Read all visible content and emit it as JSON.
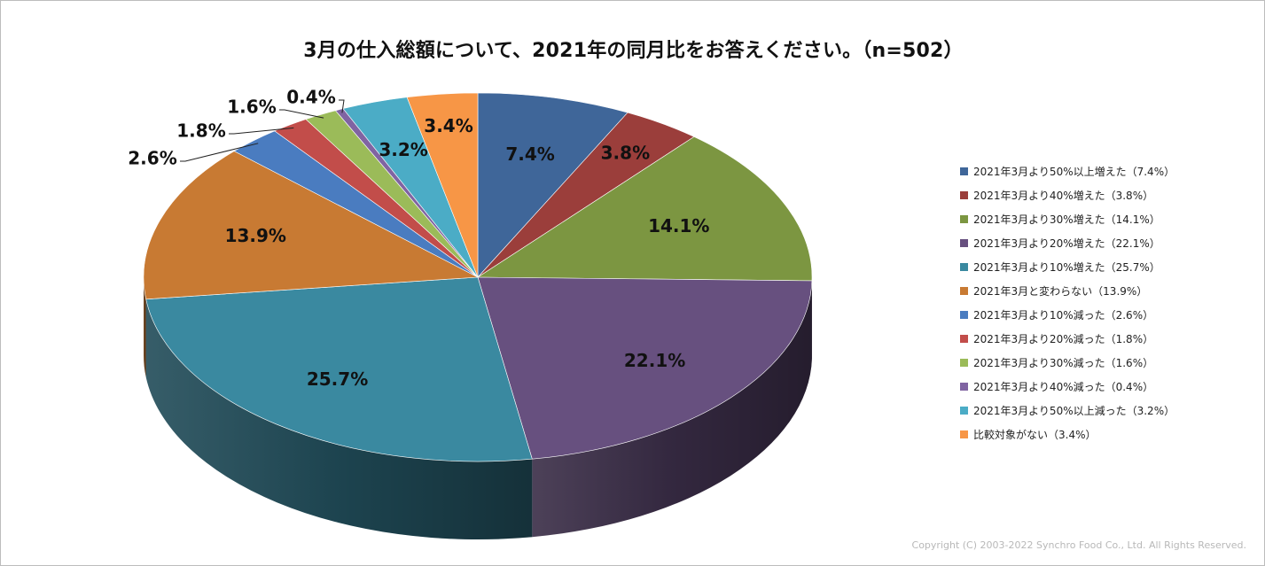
{
  "chart_data": {
    "type": "pie",
    "title": "3月の仕入総額について、2021年の同月比をお答えください。（n=502）",
    "slices": [
      {
        "label": "2021年3月より50%以上増えた（7.4%）",
        "value": 7.4,
        "data_label": "7.4%",
        "color": "#3F6699"
      },
      {
        "label": "2021年3月より40%増えた（3.8%）",
        "value": 3.8,
        "data_label": "3.8%",
        "color": "#9B3E3B"
      },
      {
        "label": "2021年3月より30%増えた（14.1%）",
        "value": 14.1,
        "data_label": "14.1%",
        "color": "#7C9641"
      },
      {
        "label": "2021年3月より20%増えた（22.1%）",
        "value": 22.1,
        "data_label": "22.1%",
        "color": "#67507F"
      },
      {
        "label": "2021年3月より10%増えた（25.7%）",
        "value": 25.7,
        "data_label": "25.7%",
        "color": "#3A89A0"
      },
      {
        "label": "2021年3月と変わらない（13.9%）",
        "value": 13.9,
        "data_label": "13.9%",
        "color": "#C87A33"
      },
      {
        "label": "2021年3月より10%減った（2.6%）",
        "value": 2.6,
        "data_label": "2.6%",
        "color": "#4A7CC0"
      },
      {
        "label": "2021年3月より20%減った（1.8%）",
        "value": 1.8,
        "data_label": "1.8%",
        "color": "#C24D4A"
      },
      {
        "label": "2021年3月より30%減った（1.6%）",
        "value": 1.6,
        "data_label": "1.6%",
        "color": "#9BBB59"
      },
      {
        "label": "2021年3月より40%減った（0.4%）",
        "value": 0.4,
        "data_label": "0.4%",
        "color": "#8064A2"
      },
      {
        "label": "2021年3月より50%以上減った（3.2%）",
        "value": 3.2,
        "data_label": "3.2%",
        "color": "#4BACC6"
      },
      {
        "label": "比較対象がない（3.4%）",
        "value": 3.4,
        "data_label": "3.4%",
        "color": "#F79646"
      }
    ],
    "legend_position": "right",
    "style": "3d-pie"
  },
  "footer": {
    "copyright": "Copyright (C) 2003-2022   Synchro Food Co., Ltd. All Rights Reserved."
  }
}
